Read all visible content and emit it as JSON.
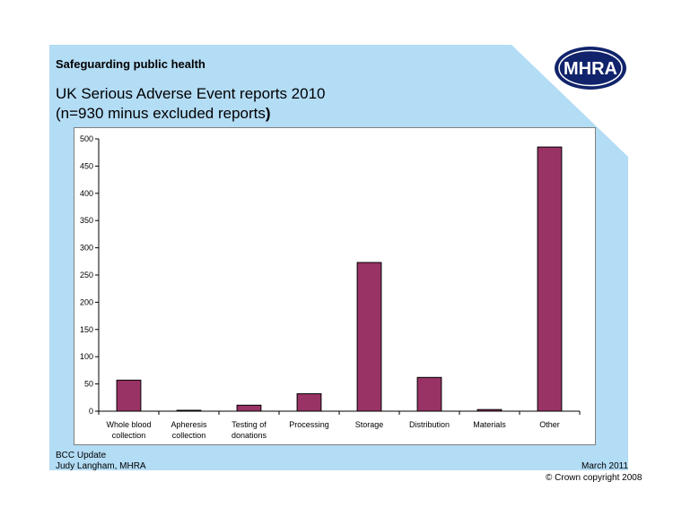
{
  "header": {
    "label": "Safeguarding public health",
    "title_line1": "UK Serious Adverse Event reports 2010",
    "title_line2_text": "(n=930 minus excluded reports",
    "title_line2_paren": ")"
  },
  "logo": {
    "text": "MHRA"
  },
  "colors": {
    "panel": "#b3dcf5",
    "bar": "#993366",
    "logo": "#10236b"
  },
  "chart_data": {
    "type": "bar",
    "categories": [
      [
        "Whole blood",
        "collection"
      ],
      [
        "Apheresis",
        "collection"
      ],
      [
        "Testing of",
        "donations"
      ],
      [
        "Processing"
      ],
      [
        "Storage"
      ],
      [
        "Distribution"
      ],
      [
        "Materials"
      ],
      [
        "Other"
      ]
    ],
    "values": [
      57,
      1,
      11,
      32,
      273,
      62,
      3,
      485
    ],
    "ylim": [
      0,
      500
    ],
    "yticks": [
      0,
      50,
      100,
      150,
      200,
      250,
      300,
      350,
      400,
      450,
      500
    ],
    "grid": false,
    "legend": "none"
  },
  "footer": {
    "line1": "BCC Update",
    "line2": "Judy Langham, MHRA",
    "date": "March 2011",
    "copyright": "© Crown copyright 2008"
  }
}
